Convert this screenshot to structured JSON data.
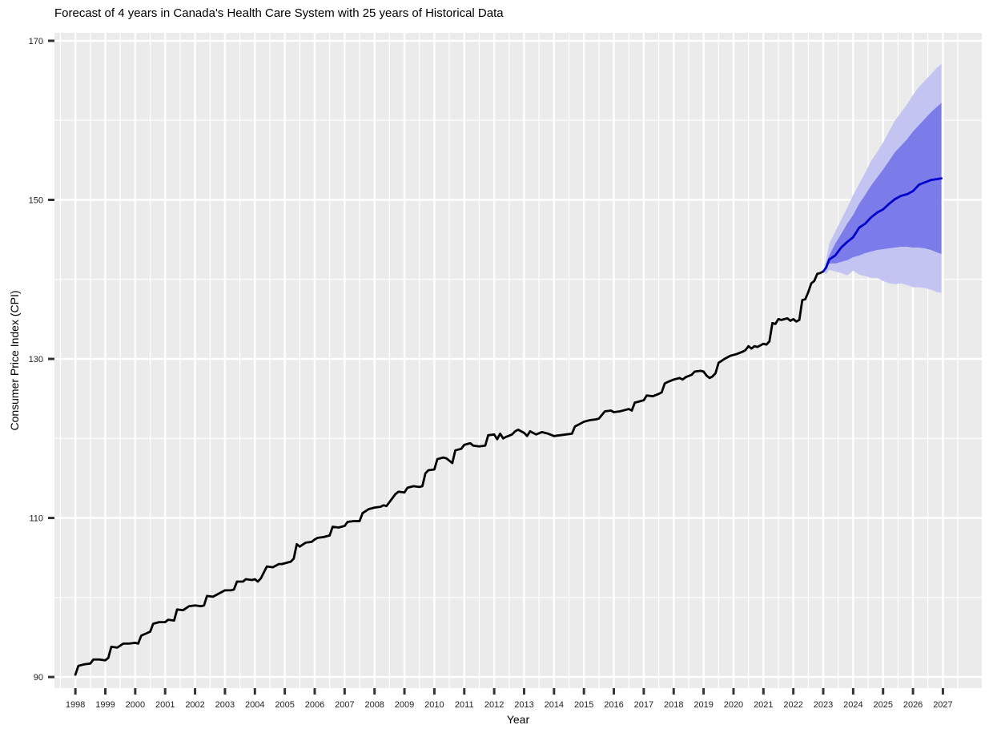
{
  "chart_data": {
    "type": "line",
    "title": "Forecast of 4 years in Canada's Health Care System with 25 years of Historical Data",
    "xlabel": "Year",
    "ylabel": "Consumer Price Index (CPI)",
    "xlim": [
      1997.3,
      2028.3
    ],
    "ylim": [
      88.6,
      171.0
    ],
    "x_ticks": [
      1998,
      1999,
      2000,
      2001,
      2002,
      2003,
      2004,
      2005,
      2006,
      2007,
      2008,
      2009,
      2010,
      2011,
      2012,
      2013,
      2014,
      2015,
      2016,
      2017,
      2018,
      2019,
      2020,
      2021,
      2022,
      2023,
      2024,
      2025,
      2026,
      2027
    ],
    "y_ticks": [
      90,
      110,
      130,
      150,
      170
    ],
    "grid": true,
    "colors": {
      "panel": "#ebebeb",
      "grid": "#ffffff",
      "historical": "#000000",
      "forecast": "#0000cc",
      "band80": "#7b7bea",
      "band95": "#c4c4f3"
    },
    "series": [
      {
        "type": "historical",
        "points": [
          [
            1998.0,
            90.3
          ],
          [
            1998.1,
            91.4
          ],
          [
            1998.3,
            91.6
          ],
          [
            1998.5,
            91.7
          ],
          [
            1998.6,
            92.2
          ],
          [
            1998.8,
            92.2
          ],
          [
            1999.0,
            92.1
          ],
          [
            1999.1,
            92.4
          ],
          [
            1999.2,
            93.8
          ],
          [
            1999.4,
            93.7
          ],
          [
            1999.6,
            94.2
          ],
          [
            1999.8,
            94.2
          ],
          [
            2000.0,
            94.3
          ],
          [
            2000.1,
            94.2
          ],
          [
            2000.2,
            95.2
          ],
          [
            2000.5,
            95.7
          ],
          [
            2000.6,
            96.7
          ],
          [
            2000.8,
            96.9
          ],
          [
            2001.0,
            96.9
          ],
          [
            2001.1,
            97.2
          ],
          [
            2001.3,
            97.1
          ],
          [
            2001.4,
            98.5
          ],
          [
            2001.6,
            98.4
          ],
          [
            2001.8,
            98.9
          ],
          [
            2002.0,
            99.0
          ],
          [
            2002.2,
            98.9
          ],
          [
            2002.3,
            99.0
          ],
          [
            2002.4,
            100.2
          ],
          [
            2002.6,
            100.1
          ],
          [
            2002.8,
            100.5
          ],
          [
            2003.0,
            100.9
          ],
          [
            2003.2,
            100.9
          ],
          [
            2003.3,
            101.0
          ],
          [
            2003.4,
            102.0
          ],
          [
            2003.6,
            102.0
          ],
          [
            2003.7,
            102.3
          ],
          [
            2003.9,
            102.2
          ],
          [
            2004.0,
            102.3
          ],
          [
            2004.1,
            102.0
          ],
          [
            2004.2,
            102.4
          ],
          [
            2004.4,
            103.9
          ],
          [
            2004.6,
            103.8
          ],
          [
            2004.8,
            104.2
          ],
          [
            2004.9,
            104.2
          ],
          [
            2005.0,
            104.3
          ],
          [
            2005.2,
            104.5
          ],
          [
            2005.3,
            104.9
          ],
          [
            2005.4,
            106.7
          ],
          [
            2005.5,
            106.4
          ],
          [
            2005.7,
            106.9
          ],
          [
            2005.9,
            107.0
          ],
          [
            2006.0,
            107.3
          ],
          [
            2006.1,
            107.5
          ],
          [
            2006.3,
            107.6
          ],
          [
            2006.5,
            107.8
          ],
          [
            2006.6,
            108.9
          ],
          [
            2006.8,
            108.8
          ],
          [
            2007.0,
            109.0
          ],
          [
            2007.1,
            109.5
          ],
          [
            2007.3,
            109.6
          ],
          [
            2007.5,
            109.6
          ],
          [
            2007.6,
            110.6
          ],
          [
            2007.8,
            111.1
          ],
          [
            2008.0,
            111.3
          ],
          [
            2008.2,
            111.4
          ],
          [
            2008.3,
            111.6
          ],
          [
            2008.4,
            111.5
          ],
          [
            2008.5,
            112.0
          ],
          [
            2008.7,
            113.0
          ],
          [
            2008.8,
            113.3
          ],
          [
            2009.0,
            113.2
          ],
          [
            2009.1,
            113.8
          ],
          [
            2009.3,
            114.0
          ],
          [
            2009.5,
            113.9
          ],
          [
            2009.6,
            114.0
          ],
          [
            2009.7,
            115.6
          ],
          [
            2009.8,
            116.0
          ],
          [
            2010.0,
            116.1
          ],
          [
            2010.1,
            117.4
          ],
          [
            2010.3,
            117.6
          ],
          [
            2010.4,
            117.5
          ],
          [
            2010.5,
            117.2
          ],
          [
            2010.6,
            116.9
          ],
          [
            2010.7,
            118.5
          ],
          [
            2010.9,
            118.7
          ],
          [
            2011.0,
            119.2
          ],
          [
            2011.2,
            119.4
          ],
          [
            2011.3,
            119.1
          ],
          [
            2011.5,
            119.0
          ],
          [
            2011.7,
            119.1
          ],
          [
            2011.8,
            120.4
          ],
          [
            2012.0,
            120.5
          ],
          [
            2012.1,
            119.9
          ],
          [
            2012.2,
            120.6
          ],
          [
            2012.3,
            120.0
          ],
          [
            2012.4,
            120.2
          ],
          [
            2012.6,
            120.5
          ],
          [
            2012.7,
            120.9
          ],
          [
            2012.8,
            121.1
          ],
          [
            2013.0,
            120.7
          ],
          [
            2013.1,
            120.3
          ],
          [
            2013.2,
            120.9
          ],
          [
            2013.4,
            120.5
          ],
          [
            2013.6,
            120.8
          ],
          [
            2013.8,
            120.6
          ],
          [
            2014.0,
            120.3
          ],
          [
            2014.2,
            120.4
          ],
          [
            2014.4,
            120.5
          ],
          [
            2014.6,
            120.6
          ],
          [
            2014.7,
            121.5
          ],
          [
            2014.9,
            121.9
          ],
          [
            2015.0,
            122.1
          ],
          [
            2015.2,
            122.3
          ],
          [
            2015.4,
            122.4
          ],
          [
            2015.5,
            122.5
          ],
          [
            2015.7,
            123.4
          ],
          [
            2015.9,
            123.5
          ],
          [
            2016.0,
            123.3
          ],
          [
            2016.2,
            123.4
          ],
          [
            2016.4,
            123.6
          ],
          [
            2016.5,
            123.7
          ],
          [
            2016.6,
            123.5
          ],
          [
            2016.7,
            124.5
          ],
          [
            2016.9,
            124.7
          ],
          [
            2017.0,
            124.8
          ],
          [
            2017.1,
            125.4
          ],
          [
            2017.3,
            125.3
          ],
          [
            2017.5,
            125.6
          ],
          [
            2017.6,
            125.8
          ],
          [
            2017.7,
            126.9
          ],
          [
            2017.8,
            127.1
          ],
          [
            2018.0,
            127.4
          ],
          [
            2018.2,
            127.6
          ],
          [
            2018.3,
            127.4
          ],
          [
            2018.4,
            127.7
          ],
          [
            2018.6,
            128.0
          ],
          [
            2018.7,
            128.4
          ],
          [
            2018.9,
            128.5
          ],
          [
            2019.0,
            128.4
          ],
          [
            2019.1,
            127.9
          ],
          [
            2019.2,
            127.6
          ],
          [
            2019.3,
            127.8
          ],
          [
            2019.4,
            128.2
          ],
          [
            2019.5,
            129.5
          ],
          [
            2019.7,
            130.0
          ],
          [
            2019.9,
            130.4
          ],
          [
            2020.0,
            130.5
          ],
          [
            2020.1,
            130.6
          ],
          [
            2020.3,
            130.9
          ],
          [
            2020.4,
            131.1
          ],
          [
            2020.5,
            131.6
          ],
          [
            2020.6,
            131.3
          ],
          [
            2020.7,
            131.6
          ],
          [
            2020.8,
            131.5
          ],
          [
            2021.0,
            131.9
          ],
          [
            2021.1,
            131.8
          ],
          [
            2021.2,
            132.2
          ],
          [
            2021.3,
            134.5
          ],
          [
            2021.4,
            134.4
          ],
          [
            2021.5,
            135.0
          ],
          [
            2021.6,
            134.9
          ],
          [
            2021.8,
            135.1
          ],
          [
            2021.9,
            134.8
          ],
          [
            2022.0,
            135.0
          ],
          [
            2022.1,
            134.7
          ],
          [
            2022.2,
            134.9
          ],
          [
            2022.3,
            137.4
          ],
          [
            2022.4,
            137.5
          ],
          [
            2022.5,
            138.4
          ],
          [
            2022.6,
            139.5
          ],
          [
            2022.7,
            139.8
          ],
          [
            2022.8,
            140.7
          ],
          [
            2022.9,
            140.8
          ],
          [
            2023.0,
            141.0
          ]
        ]
      },
      {
        "type": "forecast",
        "points": [
          [
            2023.0,
            141.0
          ],
          [
            2023.1,
            141.5
          ],
          [
            2023.2,
            142.5
          ],
          [
            2023.4,
            143.0
          ],
          [
            2023.6,
            144.0
          ],
          [
            2023.8,
            144.7
          ],
          [
            2024.0,
            145.3
          ],
          [
            2024.2,
            146.5
          ],
          [
            2024.4,
            147.0
          ],
          [
            2024.6,
            147.8
          ],
          [
            2024.8,
            148.4
          ],
          [
            2025.0,
            148.8
          ],
          [
            2025.2,
            149.5
          ],
          [
            2025.4,
            150.1
          ],
          [
            2025.6,
            150.5
          ],
          [
            2025.8,
            150.7
          ],
          [
            2026.0,
            151.1
          ],
          [
            2026.2,
            151.9
          ],
          [
            2026.4,
            152.2
          ],
          [
            2026.6,
            152.5
          ],
          [
            2026.8,
            152.6
          ],
          [
            2026.95,
            152.7
          ]
        ]
      }
    ],
    "bands": [
      {
        "level": "95",
        "points": [
          [
            2023.0,
            141.0,
            141.0
          ],
          [
            2023.1,
            142.5,
            140.7
          ],
          [
            2023.2,
            144.5,
            141.2
          ],
          [
            2023.4,
            146.0,
            141.0
          ],
          [
            2023.6,
            147.5,
            140.8
          ],
          [
            2023.8,
            149.0,
            140.5
          ],
          [
            2024.0,
            150.6,
            141.1
          ],
          [
            2024.2,
            152.0,
            140.6
          ],
          [
            2024.4,
            153.4,
            140.4
          ],
          [
            2024.6,
            154.9,
            140.2
          ],
          [
            2024.8,
            156.0,
            140.2
          ],
          [
            2025.0,
            157.2,
            139.8
          ],
          [
            2025.2,
            158.6,
            139.5
          ],
          [
            2025.4,
            160.0,
            139.4
          ],
          [
            2025.6,
            161.0,
            139.5
          ],
          [
            2025.8,
            162.0,
            139.3
          ],
          [
            2026.0,
            163.2,
            139.0
          ],
          [
            2026.2,
            164.2,
            139.0
          ],
          [
            2026.4,
            165.0,
            138.9
          ],
          [
            2026.6,
            165.8,
            138.7
          ],
          [
            2026.8,
            166.6,
            138.4
          ],
          [
            2026.95,
            167.1,
            138.3
          ]
        ]
      },
      {
        "level": "80",
        "points": [
          [
            2023.0,
            141.0,
            141.0
          ],
          [
            2023.1,
            142.0,
            141.5
          ],
          [
            2023.2,
            143.0,
            142.0
          ],
          [
            2023.4,
            144.5,
            142.0
          ],
          [
            2023.6,
            145.7,
            142.2
          ],
          [
            2023.8,
            147.0,
            142.4
          ],
          [
            2024.0,
            148.1,
            142.8
          ],
          [
            2024.2,
            149.5,
            143.0
          ],
          [
            2024.4,
            150.6,
            143.3
          ],
          [
            2024.6,
            151.8,
            143.5
          ],
          [
            2024.8,
            152.8,
            143.7
          ],
          [
            2025.0,
            153.8,
            143.8
          ],
          [
            2025.2,
            154.9,
            143.9
          ],
          [
            2025.4,
            156.0,
            144.0
          ],
          [
            2025.6,
            156.8,
            144.1
          ],
          [
            2025.8,
            157.6,
            144.1
          ],
          [
            2026.0,
            158.6,
            144.0
          ],
          [
            2026.2,
            159.4,
            144.0
          ],
          [
            2026.4,
            160.2,
            143.9
          ],
          [
            2026.6,
            161.0,
            143.7
          ],
          [
            2026.8,
            161.7,
            143.4
          ],
          [
            2026.95,
            162.2,
            143.2
          ]
        ]
      }
    ]
  }
}
